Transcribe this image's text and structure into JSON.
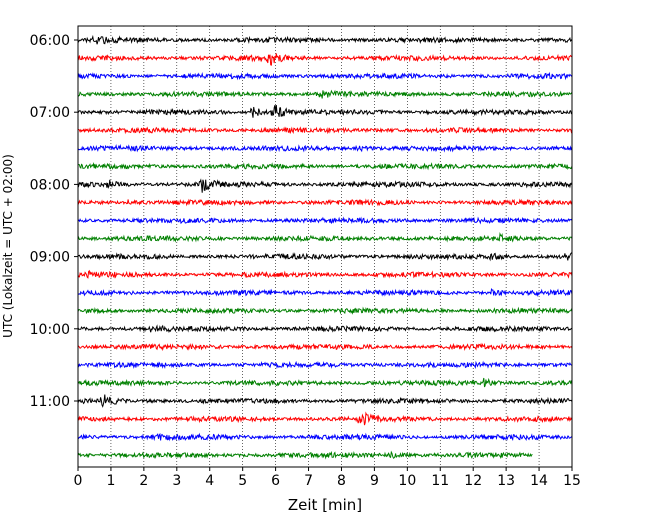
{
  "chart_data": {
    "type": "line",
    "title": "",
    "xlabel": "Zeit  [min]",
    "ylabel": "UTC (Lokalzeit = UTC + 02:00)",
    "xlim": [
      0,
      15
    ],
    "x_ticks": [
      0,
      1,
      2,
      3,
      4,
      5,
      6,
      7,
      8,
      9,
      10,
      11,
      12,
      13,
      14,
      15
    ],
    "x_tick_labels": [
      "0",
      "1",
      "2",
      "3",
      "4",
      "5",
      "6",
      "7",
      "8",
      "9",
      "10",
      "11",
      "12",
      "13",
      "14",
      "15"
    ],
    "y_tick_labels": [
      "06:00",
      "07:00",
      "08:00",
      "09:00",
      "10:00",
      "11:00"
    ],
    "grid": "vertical dotted",
    "row_interval_minutes": 15,
    "first_row": "06:00",
    "rows_count": 24,
    "last_row_end_minute": 13.8,
    "series_colors": [
      "#000000",
      "#ff0000",
      "#0000ff",
      "#008000"
    ],
    "events": [
      {
        "row": 0,
        "minute": 0.5,
        "amplitude": 0.6
      },
      {
        "row": 1,
        "minute": 5.8,
        "amplitude": 0.9
      },
      {
        "row": 3,
        "minute": 7.4,
        "amplitude": 0.5
      },
      {
        "row": 4,
        "minute": 5.3,
        "amplitude": 0.8
      },
      {
        "row": 4,
        "minute": 5.95,
        "amplitude": 1.0
      },
      {
        "row": 6,
        "minute": 8.5,
        "amplitude": 0.3
      },
      {
        "row": 8,
        "minute": 0.9,
        "amplitude": 0.6
      },
      {
        "row": 8,
        "minute": 3.75,
        "amplitude": 1.0
      },
      {
        "row": 9,
        "minute": 1.5,
        "amplitude": 0.3
      },
      {
        "row": 11,
        "minute": 12.8,
        "amplitude": 0.4
      },
      {
        "row": 12,
        "minute": 14.85,
        "amplitude": 0.7
      },
      {
        "row": 12,
        "minute": 12.5,
        "amplitude": 0.4
      },
      {
        "row": 13,
        "minute": 0.3,
        "amplitude": 0.3
      },
      {
        "row": 14,
        "minute": 12.5,
        "amplitude": 0.4
      },
      {
        "row": 16,
        "minute": 2.2,
        "amplitude": 0.8
      },
      {
        "row": 19,
        "minute": 12.3,
        "amplitude": 0.6
      },
      {
        "row": 20,
        "minute": 0.75,
        "amplitude": 1.0
      },
      {
        "row": 21,
        "minute": 8.5,
        "amplitude": 0.5
      },
      {
        "row": 21,
        "minute": 8.7,
        "amplitude": 0.5
      },
      {
        "row": 22,
        "minute": 2.3,
        "amplitude": 0.4
      },
      {
        "row": 23,
        "minute": 9.5,
        "amplitude": 0.3
      }
    ]
  }
}
